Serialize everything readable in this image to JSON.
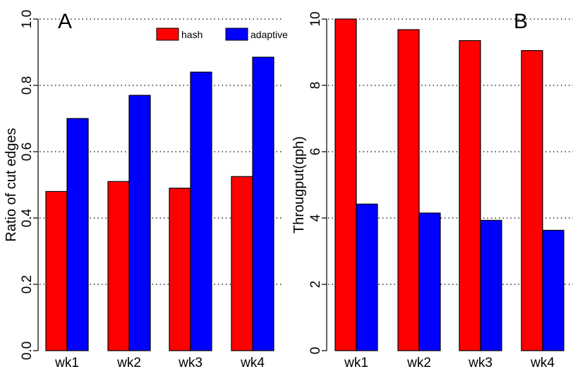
{
  "colors": {
    "hash": "#ff0000",
    "adaptive": "#0000ff"
  },
  "legend": [
    {
      "key": "hash",
      "label": "hash"
    },
    {
      "key": "adaptive",
      "label": "adaptive"
    }
  ],
  "chart_data": [
    {
      "type": "bar",
      "panel_label": "A",
      "categories": [
        "wk1",
        "wk2",
        "wk3",
        "wk4"
      ],
      "series": [
        {
          "name": "hash",
          "values": [
            0.48,
            0.51,
            0.49,
            0.525
          ]
        },
        {
          "name": "adaptive",
          "values": [
            0.7,
            0.77,
            0.84,
            0.885
          ]
        }
      ],
      "ylabel": "Ratio of cut edges",
      "xlabel": "",
      "ylim": [
        0,
        1.0
      ],
      "yticks": [
        "0.0",
        "0.2",
        "0.4",
        "0.6",
        "0.8",
        "1.0"
      ],
      "grid": "horizontal dotted",
      "legend": "top-right"
    },
    {
      "type": "bar",
      "panel_label": "B",
      "categories": [
        "wk1",
        "wk2",
        "wk3",
        "wk4"
      ],
      "series": [
        {
          "name": "hash",
          "values": [
            10.0,
            9.68,
            9.35,
            9.05
          ]
        },
        {
          "name": "adaptive",
          "values": [
            4.42,
            4.15,
            3.93,
            3.63
          ]
        }
      ],
      "ylabel": "Througput(qph)",
      "xlabel": "",
      "ylim": [
        0,
        10
      ],
      "yticks": [
        "0",
        "2",
        "4",
        "6",
        "8",
        "10"
      ],
      "grid": "horizontal dotted"
    }
  ]
}
